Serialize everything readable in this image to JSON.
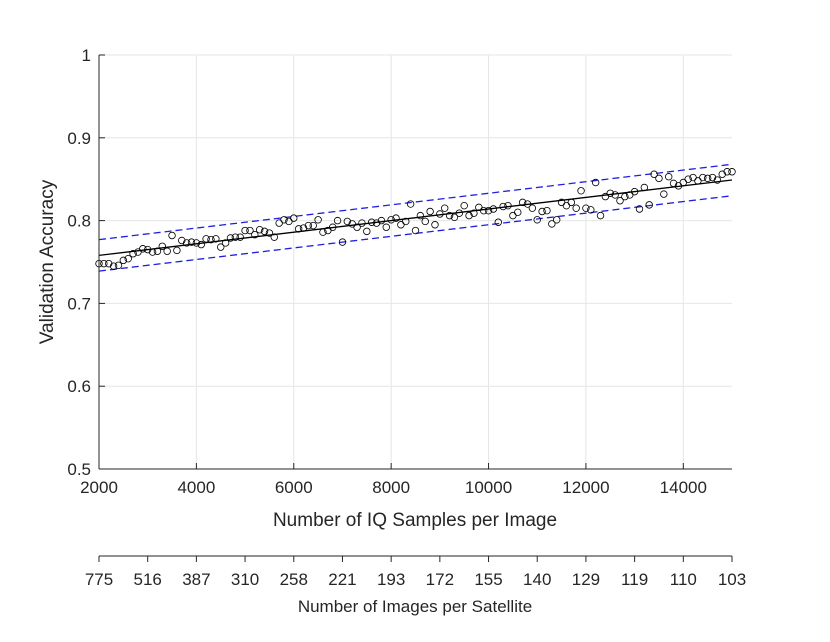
{
  "chart_data": {
    "type": "scatter",
    "xlabel": "Number of IQ Samples per Image",
    "ylabel": "Validation Accuracy",
    "xlim": [
      2000,
      15000
    ],
    "ylim": [
      0.5,
      1.0
    ],
    "x_ticks": [
      "2000",
      "4000",
      "6000",
      "8000",
      "10000",
      "12000",
      "14000"
    ],
    "x_tick_values": [
      2000,
      4000,
      6000,
      8000,
      10000,
      12000,
      14000
    ],
    "y_ticks": [
      "0.5",
      "0.6",
      "0.7",
      "0.8",
      "0.9",
      "1"
    ],
    "y_tick_values": [
      0.5,
      0.6,
      0.7,
      0.8,
      0.9,
      1.0
    ],
    "grid": true,
    "fit_line": {
      "x": [
        2000,
        15000
      ],
      "y": [
        0.758,
        0.849
      ]
    },
    "confidence_upper": {
      "x": [
        2000,
        15000
      ],
      "y": [
        0.777,
        0.868
      ]
    },
    "confidence_lower": {
      "x": [
        2000,
        15000
      ],
      "y": [
        0.739,
        0.83
      ]
    },
    "secondary_axis": {
      "xlabel": "Number of Images per Satellite",
      "ticks": [
        "775",
        "516",
        "387",
        "310",
        "258",
        "221",
        "193",
        "172",
        "155",
        "140",
        "129",
        "119",
        "110",
        "103"
      ],
      "tick_values": [
        2000,
        3000,
        4000,
        5000,
        6000,
        7000,
        8000,
        9000,
        10000,
        11000,
        12000,
        13000,
        14000,
        15000
      ]
    },
    "points": [
      [
        2000,
        0.748
      ],
      [
        2100,
        0.748
      ],
      [
        2200,
        0.748
      ],
      [
        2300,
        0.745
      ],
      [
        2400,
        0.746
      ],
      [
        2500,
        0.752
      ],
      [
        2600,
        0.754
      ],
      [
        2700,
        0.76
      ],
      [
        2800,
        0.762
      ],
      [
        2900,
        0.766
      ],
      [
        3000,
        0.765
      ],
      [
        3100,
        0.762
      ],
      [
        3200,
        0.763
      ],
      [
        3300,
        0.769
      ],
      [
        3400,
        0.763
      ],
      [
        3500,
        0.782
      ],
      [
        3600,
        0.764
      ],
      [
        3700,
        0.776
      ],
      [
        3800,
        0.773
      ],
      [
        3900,
        0.774
      ],
      [
        4000,
        0.773
      ],
      [
        4100,
        0.771
      ],
      [
        4200,
        0.778
      ],
      [
        4300,
        0.777
      ],
      [
        4400,
        0.778
      ],
      [
        4500,
        0.768
      ],
      [
        4600,
        0.773
      ],
      [
        4700,
        0.779
      ],
      [
        4800,
        0.78
      ],
      [
        4900,
        0.78
      ],
      [
        5000,
        0.788
      ],
      [
        5100,
        0.788
      ],
      [
        5200,
        0.783
      ],
      [
        5300,
        0.789
      ],
      [
        5400,
        0.787
      ],
      [
        5500,
        0.785
      ],
      [
        5600,
        0.78
      ],
      [
        5700,
        0.797
      ],
      [
        5800,
        0.801
      ],
      [
        5900,
        0.799
      ],
      [
        6000,
        0.803
      ],
      [
        6100,
        0.79
      ],
      [
        6200,
        0.791
      ],
      [
        6300,
        0.794
      ],
      [
        6400,
        0.794
      ],
      [
        6500,
        0.801
      ],
      [
        6600,
        0.786
      ],
      [
        6700,
        0.788
      ],
      [
        6800,
        0.792
      ],
      [
        6900,
        0.8
      ],
      [
        7000,
        0.774
      ],
      [
        7100,
        0.799
      ],
      [
        7200,
        0.796
      ],
      [
        7300,
        0.792
      ],
      [
        7400,
        0.797
      ],
      [
        7500,
        0.787
      ],
      [
        7600,
        0.798
      ],
      [
        7700,
        0.797
      ],
      [
        7800,
        0.8
      ],
      [
        7900,
        0.792
      ],
      [
        8000,
        0.801
      ],
      [
        8100,
        0.803
      ],
      [
        8200,
        0.795
      ],
      [
        8300,
        0.799
      ],
      [
        8400,
        0.82
      ],
      [
        8500,
        0.788
      ],
      [
        8600,
        0.806
      ],
      [
        8700,
        0.799
      ],
      [
        8800,
        0.811
      ],
      [
        8900,
        0.795
      ],
      [
        9000,
        0.808
      ],
      [
        9100,
        0.815
      ],
      [
        9200,
        0.806
      ],
      [
        9300,
        0.804
      ],
      [
        9400,
        0.809
      ],
      [
        9500,
        0.818
      ],
      [
        9600,
        0.806
      ],
      [
        9700,
        0.809
      ],
      [
        9800,
        0.816
      ],
      [
        9900,
        0.812
      ],
      [
        10000,
        0.812
      ],
      [
        10100,
        0.814
      ],
      [
        10200,
        0.798
      ],
      [
        10300,
        0.817
      ],
      [
        10400,
        0.818
      ],
      [
        10500,
        0.806
      ],
      [
        10600,
        0.81
      ],
      [
        10700,
        0.822
      ],
      [
        10800,
        0.82
      ],
      [
        10900,
        0.815
      ],
      [
        11000,
        0.801
      ],
      [
        11100,
        0.811
      ],
      [
        11200,
        0.812
      ],
      [
        11300,
        0.796
      ],
      [
        11400,
        0.801
      ],
      [
        11500,
        0.822
      ],
      [
        11600,
        0.818
      ],
      [
        11700,
        0.822
      ],
      [
        11800,
        0.815
      ],
      [
        11900,
        0.836
      ],
      [
        12000,
        0.815
      ],
      [
        12100,
        0.813
      ],
      [
        12200,
        0.846
      ],
      [
        12300,
        0.806
      ],
      [
        12400,
        0.829
      ],
      [
        12500,
        0.833
      ],
      [
        12600,
        0.831
      ],
      [
        12700,
        0.824
      ],
      [
        12800,
        0.829
      ],
      [
        12900,
        0.831
      ],
      [
        13000,
        0.835
      ],
      [
        13100,
        0.814
      ],
      [
        13200,
        0.84
      ],
      [
        13300,
        0.819
      ],
      [
        13400,
        0.856
      ],
      [
        13500,
        0.851
      ],
      [
        13600,
        0.832
      ],
      [
        13700,
        0.853
      ],
      [
        13800,
        0.845
      ],
      [
        13900,
        0.842
      ],
      [
        14000,
        0.846
      ],
      [
        14100,
        0.85
      ],
      [
        14200,
        0.852
      ],
      [
        14300,
        0.848
      ],
      [
        14400,
        0.852
      ],
      [
        14500,
        0.851
      ],
      [
        14600,
        0.852
      ],
      [
        14700,
        0.849
      ],
      [
        14800,
        0.856
      ],
      [
        14900,
        0.859
      ],
      [
        15000,
        0.859
      ]
    ]
  },
  "colors": {
    "points": "#000000",
    "fit_line": "#000000",
    "confidence": "#1f1fe0",
    "grid": "#e6e6e6",
    "axis": "#262626"
  }
}
